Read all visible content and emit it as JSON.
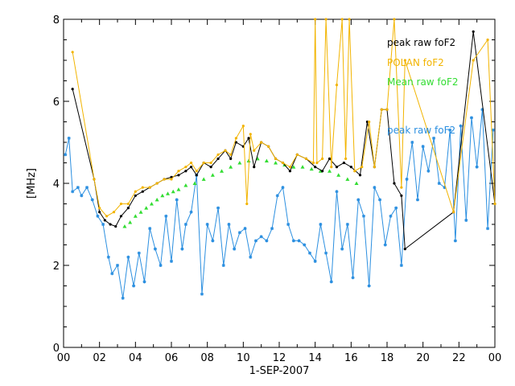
{
  "chart_data": {
    "type": "line",
    "title": "",
    "xlabel": "1-SEP-2007",
    "ylabel": "[MHz]",
    "xlim": [
      0,
      24
    ],
    "ylim": [
      0,
      8
    ],
    "x_ticks": [
      "00",
      "02",
      "04",
      "06",
      "08",
      "10",
      "12",
      "14",
      "16",
      "18",
      "20",
      "22",
      "00"
    ],
    "y_ticks": [
      "0",
      "2",
      "4",
      "6",
      "8"
    ],
    "legend_position": "top-right",
    "series": [
      {
        "name": "peak raw foF2",
        "color": "#000000",
        "marker": "dot",
        "x": [
          0.5,
          1.7,
          2.0,
          2.3,
          2.6,
          2.9,
          3.2,
          3.6,
          4.0,
          4.4,
          4.8,
          5.2,
          5.6,
          6.0,
          6.4,
          6.8,
          7.1,
          7.4,
          7.8,
          8.2,
          8.6,
          9.0,
          9.3,
          9.6,
          10.0,
          10.3,
          10.6,
          11.0,
          11.4,
          11.8,
          12.2,
          12.6,
          13.0,
          13.5,
          14.0,
          14.4,
          14.8,
          15.2,
          15.6,
          16.0,
          16.5,
          16.9,
          17.3,
          17.7,
          18.0,
          18.4,
          18.8,
          19.0,
          21.7,
          22.8,
          24.0
        ],
        "y": [
          6.3,
          4.1,
          3.3,
          3.1,
          3.0,
          2.95,
          3.2,
          3.4,
          3.7,
          3.8,
          3.9,
          4.0,
          4.1,
          4.15,
          4.2,
          4.3,
          4.4,
          4.2,
          4.5,
          4.4,
          4.6,
          4.8,
          4.6,
          5.0,
          4.9,
          5.1,
          4.4,
          5.0,
          4.9,
          4.6,
          4.5,
          4.3,
          4.7,
          4.6,
          4.4,
          4.3,
          4.6,
          4.4,
          4.5,
          4.4,
          4.2,
          5.5,
          4.4,
          5.8,
          5.8,
          4.0,
          3.7,
          2.4,
          3.3,
          7.7,
          3.5
        ]
      },
      {
        "name": "POLAN foF2",
        "color": "#f2b400",
        "marker": "dot",
        "x": [
          0.5,
          1.7,
          2.0,
          2.4,
          2.8,
          3.2,
          3.6,
          4.0,
          4.4,
          4.8,
          5.2,
          5.6,
          6.0,
          6.4,
          6.8,
          7.1,
          7.4,
          7.8,
          8.2,
          8.6,
          9.0,
          9.3,
          9.6,
          10.0,
          10.2,
          10.4,
          10.6,
          11.0,
          11.4,
          11.8,
          12.2,
          12.6,
          13.0,
          13.5,
          13.9,
          14.0,
          14.1,
          14.4,
          14.6,
          14.9,
          15.2,
          15.5,
          15.7,
          15.9,
          16.2,
          16.6,
          17.0,
          17.3,
          17.7,
          18.0,
          18.4,
          18.8,
          19.0,
          21.7,
          22.8,
          23.6,
          24.0
        ],
        "y": [
          7.2,
          4.1,
          3.4,
          3.2,
          3.3,
          3.5,
          3.5,
          3.8,
          3.9,
          3.9,
          4.0,
          4.1,
          4.1,
          4.3,
          4.4,
          4.5,
          4.3,
          4.5,
          4.5,
          4.7,
          4.8,
          4.7,
          5.1,
          5.4,
          3.5,
          5.2,
          4.8,
          5.0,
          4.9,
          4.6,
          4.5,
          4.4,
          4.7,
          4.6,
          4.5,
          8.0,
          4.5,
          4.6,
          8.0,
          4.4,
          6.4,
          8.0,
          4.6,
          8.0,
          4.3,
          4.4,
          5.5,
          4.4,
          5.8,
          5.8,
          8.0,
          3.9,
          7.0,
          3.3,
          7.0,
          7.5,
          3.5
        ]
      },
      {
        "name": "Mean raw foF2",
        "color": "#33dd33",
        "marker": "triangle",
        "x": [
          3.4,
          3.7,
          4.0,
          4.3,
          4.6,
          4.9,
          5.2,
          5.5,
          5.8,
          6.1,
          6.4,
          6.8,
          7.3,
          7.8,
          8.3,
          8.8,
          9.3,
          9.8,
          10.3,
          10.8,
          11.3,
          11.8,
          12.3,
          12.8,
          13.3,
          13.8,
          14.3,
          14.8,
          15.3,
          15.8,
          16.3
        ],
        "y": [
          2.95,
          3.05,
          3.2,
          3.3,
          3.4,
          3.5,
          3.6,
          3.7,
          3.75,
          3.8,
          3.85,
          3.95,
          4.0,
          4.1,
          4.2,
          4.3,
          4.4,
          4.5,
          4.55,
          4.6,
          4.55,
          4.5,
          4.45,
          4.4,
          4.4,
          4.35,
          4.3,
          4.3,
          4.2,
          4.1,
          4.0
        ]
      },
      {
        "name": "peak raw foF2",
        "color": "#2b8fe0",
        "marker": "star",
        "x": [
          0.1,
          0.3,
          0.5,
          0.8,
          1.0,
          1.3,
          1.6,
          1.9,
          2.2,
          2.5,
          2.7,
          3.0,
          3.3,
          3.6,
          3.9,
          4.2,
          4.5,
          4.8,
          5.1,
          5.4,
          5.7,
          6.0,
          6.3,
          6.6,
          6.8,
          7.1,
          7.4,
          7.7,
          8.0,
          8.3,
          8.6,
          8.9,
          9.2,
          9.5,
          9.8,
          10.1,
          10.4,
          10.7,
          11.0,
          11.3,
          11.6,
          11.9,
          12.2,
          12.5,
          12.8,
          13.1,
          13.4,
          13.7,
          14.0,
          14.3,
          14.6,
          14.9,
          15.2,
          15.5,
          15.8,
          16.1,
          16.4,
          16.7,
          17.0,
          17.3,
          17.6,
          17.9,
          18.2,
          18.5,
          18.8,
          19.1,
          19.4,
          19.7,
          20.0,
          20.3,
          20.6,
          20.9,
          21.2,
          21.5,
          21.8,
          22.1,
          22.4,
          22.7,
          23.0,
          23.3,
          23.6,
          23.9
        ],
        "y": [
          4.7,
          5.1,
          3.8,
          3.9,
          3.7,
          3.9,
          3.6,
          3.2,
          3.0,
          2.2,
          1.8,
          2.0,
          1.2,
          2.2,
          1.5,
          2.3,
          1.6,
          2.9,
          2.4,
          2.0,
          3.2,
          2.1,
          3.6,
          2.4,
          3.0,
          3.3,
          4.2,
          1.3,
          3.0,
          2.6,
          3.4,
          2.0,
          3.0,
          2.4,
          2.8,
          2.9,
          2.2,
          2.6,
          2.7,
          2.6,
          2.9,
          3.7,
          3.9,
          3.0,
          2.6,
          2.6,
          2.5,
          2.3,
          2.1,
          3.0,
          2.3,
          1.6,
          3.8,
          2.4,
          3.0,
          1.7,
          3.6,
          3.2,
          1.5,
          3.9,
          3.6,
          2.5,
          3.2,
          3.4,
          2.0,
          4.1,
          5.0,
          3.6,
          4.9,
          4.3,
          5.1,
          4.0,
          3.9,
          5.3,
          2.6,
          5.4,
          3.1,
          5.6,
          4.4,
          5.8,
          2.9,
          5.3
        ]
      }
    ]
  }
}
